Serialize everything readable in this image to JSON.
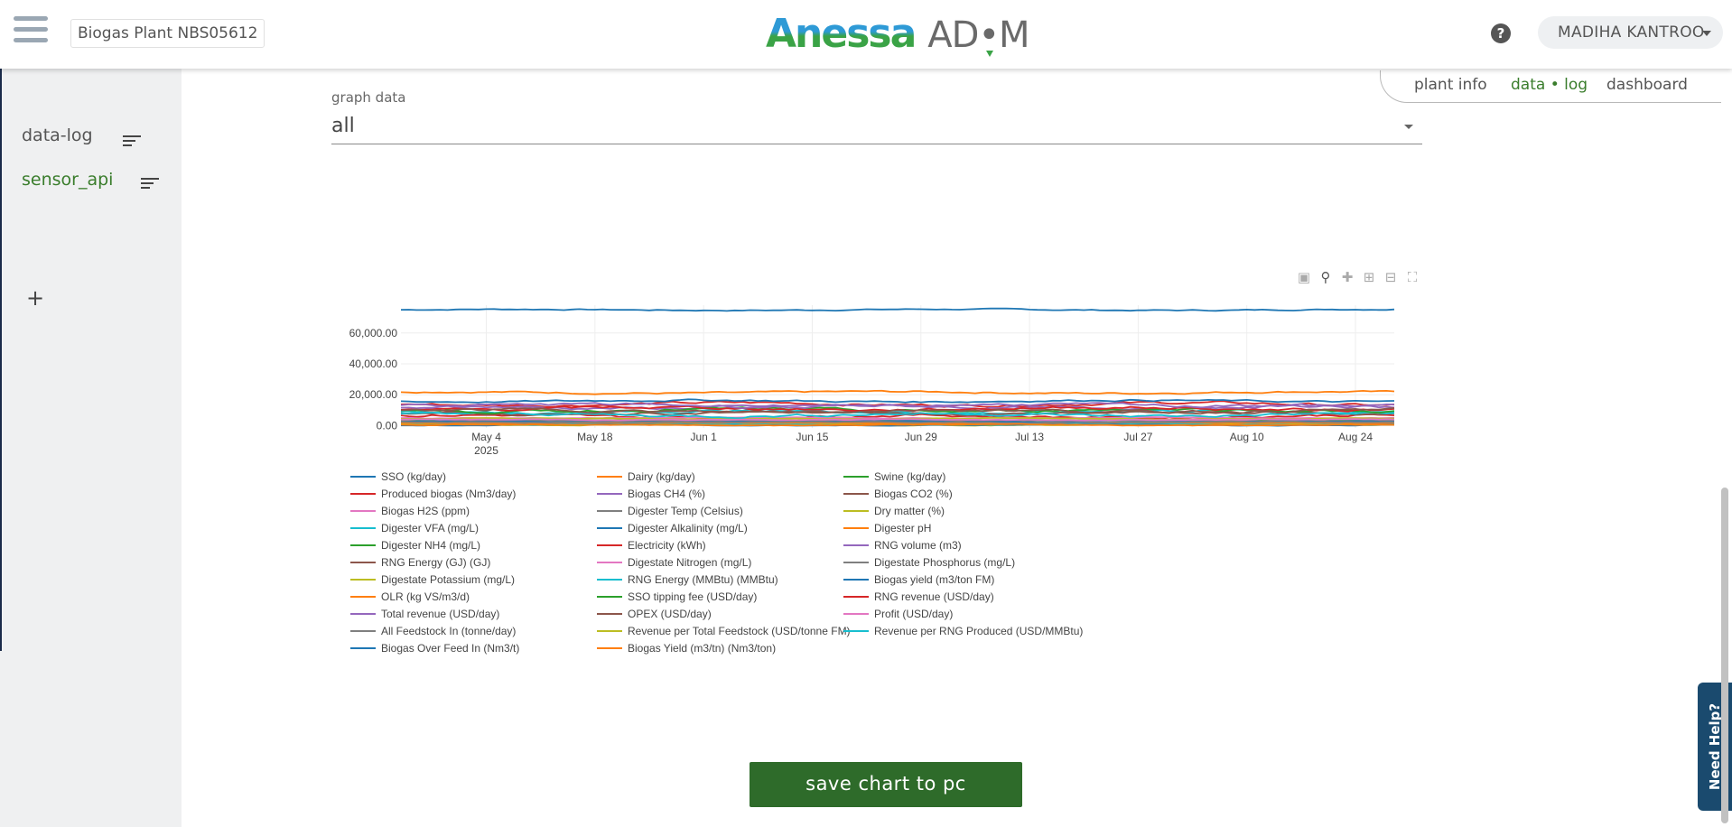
{
  "header": {
    "plant_name": "Biogas Plant NBS05612",
    "logo_main": "Anessa",
    "logo_sub": "AD•M",
    "help_label": "?",
    "user_name": "MADIHA KANTROO"
  },
  "sidebar": {
    "items": [
      {
        "label": "data-log",
        "color": "#555555"
      },
      {
        "label": "sensor_api",
        "color": "#3a7d2c"
      }
    ],
    "add_label": "+"
  },
  "tabs": [
    {
      "label": "plant info",
      "active": false
    },
    {
      "label": "data • log",
      "active": true
    },
    {
      "label": "dashboard",
      "active": false
    }
  ],
  "graph": {
    "label": "graph data",
    "selected": "all"
  },
  "modebar": [
    "camera-icon",
    "zoom-icon",
    "pan-icon",
    "zoom-in-icon",
    "zoom-out-icon",
    "autoscale-icon"
  ],
  "save_button": "save chart to pc",
  "need_help": "Need Help?",
  "colors": {
    "accent_green": "#2e6b2a",
    "tab_active": "#3a7d2c",
    "need_help_bg": "#1a4a6e"
  },
  "chart_data": {
    "type": "line",
    "x_ticks": [
      "May 4",
      "May 18",
      "Jun 1",
      "Jun 15",
      "Jun 29",
      "Jul 13",
      "Jul 27",
      "Aug 10",
      "Aug 24"
    ],
    "x_year": "2025",
    "xlim": [
      "2025-04-23",
      "2025-08-29"
    ],
    "y_ticks": [
      "0.00",
      "20,000.00",
      "40,000.00",
      "60,000.00"
    ],
    "ylim": [
      -1500,
      78000
    ],
    "legend": [
      "SSO (kg/day)",
      "Dairy (kg/day)",
      "Swine (kg/day)",
      "Produced biogas (Nm3/day)",
      "Biogas CH4  (%)",
      "Biogas CO2 (%)",
      "Biogas H2S (ppm)",
      "Digester Temp (Celsius)",
      "Dry matter (%)",
      "Digester VFA (mg/L)",
      "Digester Alkalinity (mg/L)",
      "Digester pH",
      "Digester NH4 (mg/L)",
      "Electricity (kWh)",
      "RNG volume (m3)",
      "RNG Energy (GJ) (GJ)",
      "Digestate Nitrogen (mg/L)",
      "Digestate Phosphorus (mg/L)",
      "Digestate Potassium (mg/L)",
      "RNG Energy (MMBtu) (MMBtu)",
      "Biogas yield (m3/ton FM)",
      "OLR (kg VS/m3/d)",
      "SSO tipping fee (USD/day)",
      "RNG revenue (USD/day)",
      "Total revenue (USD/day)",
      "OPEX (USD/day)",
      "Profit (USD/day)",
      "All Feedstock In (tonne/day)",
      "Revenue per Total Feedstock (USD/tonne FM)",
      "Revenue per RNG Produced (USD/MMBtu)",
      "Biogas Over Feed In (Nm3/t)",
      "Biogas Yield (m3/tn) (Nm3/ton)"
    ],
    "series_colors": [
      "#1f77b4",
      "#ff7f0e",
      "#2ca02c",
      "#d62728",
      "#9467bd",
      "#8c564b",
      "#e377c2",
      "#7f7f7f",
      "#bcbd22",
      "#17becf"
    ],
    "series_levels": [
      75000,
      21500,
      1500,
      14000,
      1800,
      1200,
      1000,
      1400,
      900,
      9000,
      16000,
      800,
      3500,
      6000,
      12000,
      8000,
      5000,
      3000,
      4500,
      7000,
      2500,
      1600,
      10000,
      11000,
      13000,
      9500,
      3800,
      2200,
      600,
      700,
      400,
      500
    ]
  }
}
